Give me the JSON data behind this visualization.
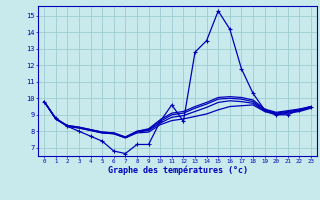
{
  "xlabel": "Graphe des températures (°c)",
  "background_color": "#c8eaed",
  "grid_color": "#9ecdd1",
  "line_color": "#0000bb",
  "xlim": [
    -0.5,
    23.5
  ],
  "ylim": [
    6.5,
    15.6
  ],
  "yticks": [
    7,
    8,
    9,
    10,
    11,
    12,
    13,
    14,
    15
  ],
  "xticks": [
    0,
    1,
    2,
    3,
    4,
    5,
    6,
    7,
    8,
    9,
    10,
    11,
    12,
    13,
    14,
    15,
    16,
    17,
    18,
    19,
    20,
    21,
    22,
    23
  ],
  "main_y": [
    9.8,
    8.8,
    8.3,
    8.0,
    7.7,
    7.4,
    6.8,
    6.65,
    7.2,
    7.2,
    8.6,
    9.6,
    8.6,
    12.8,
    13.5,
    15.3,
    14.2,
    11.8,
    10.3,
    9.3,
    9.0,
    9.0,
    9.3,
    9.5
  ],
  "smooth_lines": [
    [
      9.8,
      8.75,
      8.3,
      8.2,
      8.05,
      7.9,
      7.85,
      7.6,
      7.9,
      7.95,
      8.4,
      8.65,
      8.75,
      8.9,
      9.05,
      9.3,
      9.5,
      9.55,
      9.6,
      9.2,
      9.0,
      9.1,
      9.2,
      9.4
    ],
    [
      9.8,
      8.75,
      8.3,
      8.2,
      8.05,
      7.9,
      7.85,
      7.6,
      7.95,
      8.05,
      8.5,
      8.85,
      8.95,
      9.2,
      9.45,
      9.75,
      9.85,
      9.8,
      9.7,
      9.25,
      9.05,
      9.15,
      9.25,
      9.45
    ],
    [
      9.8,
      8.75,
      8.35,
      8.25,
      8.1,
      7.95,
      7.9,
      7.65,
      8.0,
      8.1,
      8.6,
      9.0,
      9.1,
      9.4,
      9.65,
      9.95,
      10.0,
      9.95,
      9.8,
      9.3,
      9.1,
      9.2,
      9.3,
      9.5
    ],
    [
      9.8,
      8.75,
      8.35,
      8.25,
      8.1,
      7.95,
      7.9,
      7.65,
      8.0,
      8.15,
      8.7,
      9.1,
      9.2,
      9.5,
      9.75,
      10.05,
      10.1,
      10.05,
      9.9,
      9.35,
      9.15,
      9.25,
      9.35,
      9.5
    ]
  ]
}
